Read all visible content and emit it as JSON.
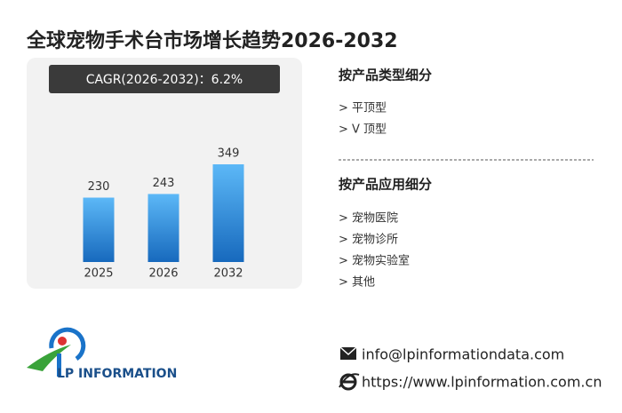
{
  "chart_data": {
    "type": "bar",
    "title": "全球宠物手术台市场增长趋势2026-2032",
    "annotation": "CAGR(2026-2032)：6.2%",
    "categories": [
      "2025",
      "2026",
      "2032"
    ],
    "values": [
      230,
      243,
      349
    ],
    "color": "#2b8be0"
  },
  "segments": [
    {
      "title": "按产品类型细分",
      "items": [
        "> 平顶型",
        "> V 顶型"
      ]
    },
    {
      "title": "按产品应用细分",
      "items": [
        "> 宠物医院",
        "> 宠物诊所",
        "> 宠物实验室",
        "> 其他"
      ]
    }
  ],
  "logo": {
    "text": "LP INFORMATION"
  },
  "contact": {
    "email": "info@lpinformationdata.com",
    "website": "https://www.lpinformation.com.cn"
  }
}
